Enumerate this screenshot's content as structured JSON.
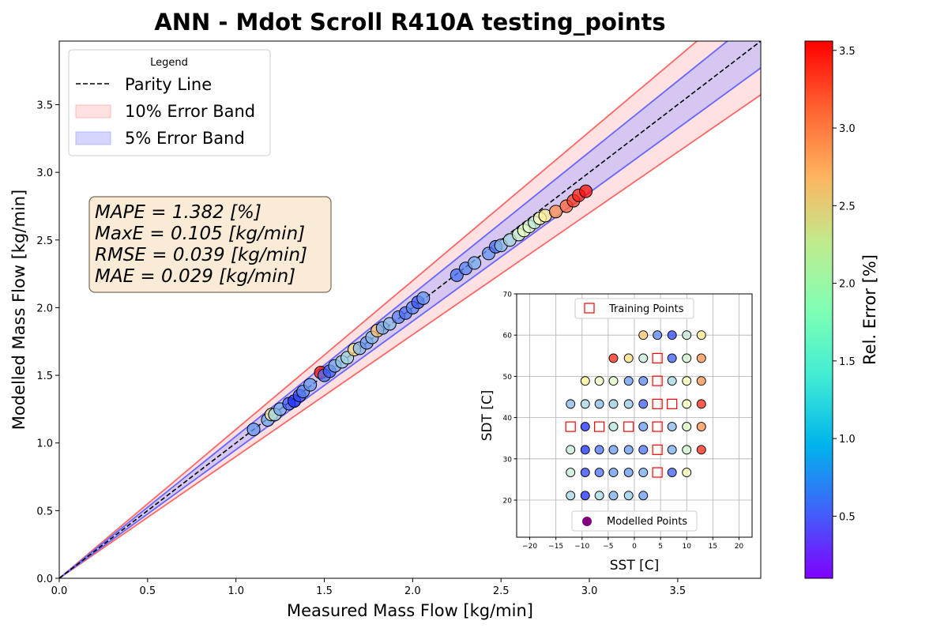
{
  "chart_data": [
    {
      "type": "scatter",
      "title": "ANN - Mdot Scroll R410A testing_points",
      "xlabel": "Measured Mass Flow [kg/min]",
      "ylabel": "Modelled Mass Flow [kg/min]",
      "xlim": [
        0,
        3.97
      ],
      "ylim": [
        0,
        3.97
      ],
      "xticks": [
        "0.0",
        "0.5",
        "1.0",
        "1.5",
        "2.0",
        "2.5",
        "3.0",
        "3.5"
      ],
      "yticks": [
        "0.0",
        "0.5",
        "1.0",
        "1.5",
        "2.0",
        "2.5",
        "3.0",
        "3.5"
      ],
      "legend": {
        "title": "Legend",
        "position": "top-left",
        "entries": [
          "Parity Line",
          "10% Error Band",
          "5% Error Band"
        ]
      },
      "colors": {
        "parity": "#000000",
        "band10": "#ffb3b3",
        "band10_edge": "#ff6666",
        "band5": "#b3b3ff",
        "band5_edge": "#6666ff"
      },
      "stats_box": [
        "MAPE = 1.382 [%]",
        "MaxE = 0.105 [kg/min]",
        "RMSE = 0.039 [kg/min]",
        "MAE = 0.029 [kg/min]"
      ],
      "colorbar": {
        "label": "Rel. Error [%]",
        "range": [
          0.1,
          3.56
        ],
        "ticks": [
          "0.5",
          "1.0",
          "1.5",
          "2.0",
          "2.5",
          "3.0",
          "3.5"
        ],
        "tick_values": [
          0.5,
          1.0,
          1.5,
          2.0,
          2.5,
          3.0,
          3.5
        ],
        "colormap": "rainbow"
      },
      "points": [
        {
          "x": 1.1,
          "y": 1.1,
          "e": 0.8
        },
        {
          "x": 1.18,
          "y": 1.17,
          "e": 0.9
        },
        {
          "x": 1.2,
          "y": 1.21,
          "e": 2.2
        },
        {
          "x": 1.22,
          "y": 1.21,
          "e": 1.2
        },
        {
          "x": 1.25,
          "y": 1.25,
          "e": 0.9
        },
        {
          "x": 1.3,
          "y": 1.29,
          "e": 0.5
        },
        {
          "x": 1.33,
          "y": 1.31,
          "e": 0.3
        },
        {
          "x": 1.36,
          "y": 1.35,
          "e": 0.4
        },
        {
          "x": 1.38,
          "y": 1.38,
          "e": 0.7
        },
        {
          "x": 1.42,
          "y": 1.43,
          "e": 0.8
        },
        {
          "x": 1.48,
          "y": 1.52,
          "e": 3.5
        },
        {
          "x": 1.5,
          "y": 1.5,
          "e": 0.6
        },
        {
          "x": 1.53,
          "y": 1.53,
          "e": 0.5
        },
        {
          "x": 1.56,
          "y": 1.57,
          "e": 0.9
        },
        {
          "x": 1.6,
          "y": 1.6,
          "e": 1.1
        },
        {
          "x": 1.63,
          "y": 1.63,
          "e": 1.2
        },
        {
          "x": 1.67,
          "y": 1.69,
          "e": 2.4
        },
        {
          "x": 1.7,
          "y": 1.7,
          "e": 1.0
        },
        {
          "x": 1.74,
          "y": 1.74,
          "e": 0.8
        },
        {
          "x": 1.77,
          "y": 1.78,
          "e": 1.0
        },
        {
          "x": 1.8,
          "y": 1.83,
          "e": 2.6
        },
        {
          "x": 1.83,
          "y": 1.85,
          "e": 0.9
        },
        {
          "x": 1.87,
          "y": 1.88,
          "e": 1.0
        },
        {
          "x": 1.92,
          "y": 1.93,
          "e": 0.7
        },
        {
          "x": 1.96,
          "y": 1.96,
          "e": 0.6
        },
        {
          "x": 2.0,
          "y": 2.0,
          "e": 0.7
        },
        {
          "x": 2.03,
          "y": 2.04,
          "e": 0.5
        },
        {
          "x": 2.06,
          "y": 2.07,
          "e": 0.8
        },
        {
          "x": 2.25,
          "y": 2.24,
          "e": 0.6
        },
        {
          "x": 2.3,
          "y": 2.29,
          "e": 0.7
        },
        {
          "x": 2.35,
          "y": 2.33,
          "e": 0.9
        },
        {
          "x": 2.43,
          "y": 2.4,
          "e": 0.8
        },
        {
          "x": 2.47,
          "y": 2.45,
          "e": 0.6
        },
        {
          "x": 2.5,
          "y": 2.46,
          "e": 1.0
        },
        {
          "x": 2.55,
          "y": 2.5,
          "e": 1.2
        },
        {
          "x": 2.6,
          "y": 2.54,
          "e": 1.5
        },
        {
          "x": 2.63,
          "y": 2.57,
          "e": 1.7
        },
        {
          "x": 2.66,
          "y": 2.6,
          "e": 1.6
        },
        {
          "x": 2.69,
          "y": 2.63,
          "e": 1.4
        },
        {
          "x": 2.72,
          "y": 2.66,
          "e": 1.8
        },
        {
          "x": 2.75,
          "y": 2.68,
          "e": 2.2
        },
        {
          "x": 2.81,
          "y": 2.71,
          "e": 2.9
        },
        {
          "x": 2.87,
          "y": 2.75,
          "e": 3.1
        },
        {
          "x": 2.91,
          "y": 2.79,
          "e": 3.3
        },
        {
          "x": 2.94,
          "y": 2.83,
          "e": 3.4
        },
        {
          "x": 2.98,
          "y": 2.86,
          "e": 3.5
        }
      ]
    },
    {
      "type": "scatter",
      "xlabel": "SST [C]",
      "ylabel": "SDT [C]",
      "xlim": [
        -22.5,
        22.5
      ],
      "ylim": [
        11,
        70
      ],
      "xticks": [
        "−20",
        "−15",
        "−10",
        "−5",
        "0",
        "5",
        "10",
        "15",
        "20"
      ],
      "yticks": [
        "20",
        "30",
        "40",
        "50",
        "60",
        "70"
      ],
      "grid": true,
      "legend": {
        "entries": [
          "Training Points",
          "Modelled Points"
        ],
        "positions": [
          "top-center",
          "bottom-center"
        ]
      },
      "colors": {
        "training_edge": "#ff0000",
        "modelled_marker": "#800080"
      },
      "training_points": [
        {
          "x": 4.4,
          "y": 54.4
        },
        {
          "x": 4.4,
          "y": 48.9
        },
        {
          "x": 4.4,
          "y": 43.3
        },
        {
          "x": 7.2,
          "y": 43.3
        },
        {
          "x": -12.2,
          "y": 37.8
        },
        {
          "x": -6.7,
          "y": 37.8
        },
        {
          "x": -1.1,
          "y": 37.8
        },
        {
          "x": 4.4,
          "y": 37.8
        },
        {
          "x": 4.4,
          "y": 32.2
        },
        {
          "x": 4.4,
          "y": 26.7
        }
      ],
      "modelled_points": [
        {
          "x": 1.7,
          "y": 60.0,
          "e": 2.6
        },
        {
          "x": 4.4,
          "y": 60.0,
          "e": 0.7
        },
        {
          "x": 7.2,
          "y": 60.0,
          "e": 0.4
        },
        {
          "x": 10.0,
          "y": 60.0,
          "e": 1.4
        },
        {
          "x": 12.8,
          "y": 60.0,
          "e": 2.3
        },
        {
          "x": -4.0,
          "y": 54.4,
          "e": 3.4
        },
        {
          "x": -1.1,
          "y": 54.4,
          "e": 2.4
        },
        {
          "x": 1.7,
          "y": 54.4,
          "e": 1.4
        },
        {
          "x": 7.2,
          "y": 54.4,
          "e": 0.5
        },
        {
          "x": 10.0,
          "y": 54.4,
          "e": 1.5
        },
        {
          "x": 12.8,
          "y": 54.4,
          "e": 2.9
        },
        {
          "x": -9.4,
          "y": 48.9,
          "e": 2.2
        },
        {
          "x": -6.7,
          "y": 48.9,
          "e": 1.7
        },
        {
          "x": -4.0,
          "y": 48.9,
          "e": 1.6
        },
        {
          "x": -1.1,
          "y": 48.9,
          "e": 0.8
        },
        {
          "x": 1.7,
          "y": 48.9,
          "e": 0.7
        },
        {
          "x": 7.2,
          "y": 48.9,
          "e": 1.2
        },
        {
          "x": 10.0,
          "y": 48.9,
          "e": 1.8
        },
        {
          "x": 12.8,
          "y": 48.9,
          "e": 2.9
        },
        {
          "x": -12.2,
          "y": 43.3,
          "e": 1.0
        },
        {
          "x": -9.4,
          "y": 43.3,
          "e": 1.2
        },
        {
          "x": -6.7,
          "y": 43.3,
          "e": 1.0
        },
        {
          "x": -4.0,
          "y": 43.3,
          "e": 1.1
        },
        {
          "x": -1.1,
          "y": 43.3,
          "e": 1.1
        },
        {
          "x": 1.7,
          "y": 43.3,
          "e": 0.5
        },
        {
          "x": 10.0,
          "y": 43.3,
          "e": 1.8
        },
        {
          "x": 12.8,
          "y": 43.3,
          "e": 3.4
        },
        {
          "x": -9.4,
          "y": 37.8,
          "e": 0.3
        },
        {
          "x": -4.0,
          "y": 37.8,
          "e": 1.3
        },
        {
          "x": 1.7,
          "y": 37.8,
          "e": 0.8
        },
        {
          "x": 7.2,
          "y": 37.8,
          "e": 1.0
        },
        {
          "x": 10.0,
          "y": 37.8,
          "e": 1.6
        },
        {
          "x": 12.8,
          "y": 37.8,
          "e": 2.9
        },
        {
          "x": -12.2,
          "y": 32.2,
          "e": 1.4
        },
        {
          "x": -9.4,
          "y": 32.2,
          "e": 0.3
        },
        {
          "x": -6.7,
          "y": 32.2,
          "e": 0.6
        },
        {
          "x": -4.0,
          "y": 32.2,
          "e": 0.8
        },
        {
          "x": -1.1,
          "y": 32.2,
          "e": 0.8
        },
        {
          "x": 1.7,
          "y": 32.2,
          "e": 0.6
        },
        {
          "x": 7.2,
          "y": 32.2,
          "e": 0.9
        },
        {
          "x": 10.0,
          "y": 32.2,
          "e": 1.5
        },
        {
          "x": 12.8,
          "y": 32.2,
          "e": 3.4
        },
        {
          "x": -12.2,
          "y": 26.7,
          "e": 1.4
        },
        {
          "x": -9.4,
          "y": 26.7,
          "e": 0.4
        },
        {
          "x": -6.7,
          "y": 26.7,
          "e": 0.6
        },
        {
          "x": -4.0,
          "y": 26.7,
          "e": 0.8
        },
        {
          "x": -1.1,
          "y": 26.7,
          "e": 0.8
        },
        {
          "x": 1.7,
          "y": 26.7,
          "e": 0.9
        },
        {
          "x": 7.2,
          "y": 26.7,
          "e": 0.5
        },
        {
          "x": 10.0,
          "y": 26.7,
          "e": 1.8
        },
        {
          "x": -12.2,
          "y": 21.1,
          "e": 1.2
        },
        {
          "x": -9.4,
          "y": 21.1,
          "e": 0.3
        },
        {
          "x": -6.7,
          "y": 21.1,
          "e": 1.2
        },
        {
          "x": -4.0,
          "y": 21.1,
          "e": 0.9
        },
        {
          "x": -1.1,
          "y": 21.1,
          "e": 1.1
        },
        {
          "x": 1.7,
          "y": 21.1,
          "e": 0.8
        }
      ]
    }
  ]
}
